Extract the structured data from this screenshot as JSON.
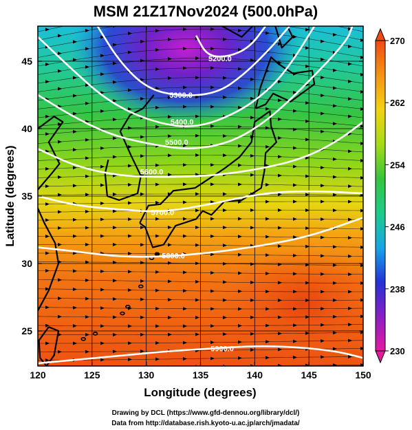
{
  "chart_data": {
    "type": "heatmap",
    "title": "MSM 21Z17Nov2024 (500.0hPa)",
    "xlabel": "Longitude (degrees)",
    "ylabel": "Latitude  (degrees)",
    "xlim": [
      120,
      150
    ],
    "ylim": [
      22.4,
      47.6
    ],
    "x_ticks": [
      120,
      125,
      130,
      135,
      140,
      145,
      150
    ],
    "y_ticks": [
      25,
      30,
      35,
      40,
      45
    ],
    "colorbar": {
      "range": [
        230,
        270
      ],
      "ticks": [
        230,
        238,
        246,
        254,
        262,
        270
      ],
      "colors": [
        "#e6199f",
        "#8a1fc4",
        "#2233d8",
        "#16a6e6",
        "#1ccc8a",
        "#37c43c",
        "#a6dc14",
        "#f2d312",
        "#f59412",
        "#ef4a12"
      ],
      "extend": "both"
    },
    "contours": [
      {
        "label": "5200.0",
        "label_pos": [
          136.8,
          45.2
        ],
        "points": [
          [
            134.6,
            46.9
          ],
          [
            135.6,
            45.4
          ],
          [
            137.5,
            45.3
          ],
          [
            139.5,
            46.0
          ],
          [
            141.0,
            47.6
          ]
        ]
      },
      {
        "label": "5300.0",
        "label_pos": [
          133.2,
          42.5
        ],
        "points": [
          [
            125.5,
            47.6
          ],
          [
            127.5,
            45.0
          ],
          [
            130.0,
            43.0
          ],
          [
            133.0,
            42.4
          ],
          [
            136.5,
            42.6
          ],
          [
            139.0,
            44.0
          ],
          [
            141.5,
            46.0
          ],
          [
            143.2,
            47.6
          ]
        ]
      },
      {
        "label": "5400.0",
        "label_pos": [
          133.3,
          40.5
        ],
        "points": [
          [
            120.0,
            46.8
          ],
          [
            123.0,
            44.5
          ],
          [
            126.5,
            42.0
          ],
          [
            130.5,
            40.5
          ],
          [
            134.5,
            40.0
          ],
          [
            138.5,
            41.2
          ],
          [
            141.5,
            43.0
          ],
          [
            143.5,
            45.0
          ],
          [
            145.5,
            47.6
          ]
        ]
      },
      {
        "label": "5500.0",
        "label_pos": [
          132.8,
          39.0
        ],
        "points": [
          [
            120.0,
            42.5
          ],
          [
            123.0,
            41.0
          ],
          [
            126.5,
            39.6
          ],
          [
            130.0,
            38.9
          ],
          [
            134.0,
            38.4
          ],
          [
            138.0,
            39.0
          ],
          [
            141.5,
            40.8
          ],
          [
            145.0,
            43.5
          ],
          [
            148.5,
            46.5
          ],
          [
            149.0,
            47.6
          ]
        ]
      },
      {
        "label": "5600.0",
        "label_pos": [
          130.5,
          36.8
        ],
        "points": [
          [
            120.0,
            38.5
          ],
          [
            123.5,
            37.2
          ],
          [
            127.5,
            36.5
          ],
          [
            131.5,
            36.4
          ],
          [
            136.0,
            36.5
          ],
          [
            140.5,
            37.0
          ],
          [
            144.5,
            37.8
          ],
          [
            147.5,
            39.0
          ],
          [
            150.0,
            40.5
          ]
        ]
      },
      {
        "label": "5700.0",
        "label_pos": [
          131.5,
          33.8
        ],
        "points": [
          [
            120.0,
            35.0
          ],
          [
            123.5,
            34.3
          ],
          [
            127.5,
            34.0
          ],
          [
            131.5,
            33.8
          ],
          [
            136.0,
            34.4
          ],
          [
            140.5,
            35.2
          ],
          [
            145.0,
            35.4
          ],
          [
            150.0,
            35.2
          ]
        ]
      },
      {
        "label": "5800.0",
        "label_pos": [
          132.5,
          30.6
        ],
        "points": [
          [
            120.0,
            31.2
          ],
          [
            123.5,
            30.9
          ],
          [
            127.5,
            30.5
          ],
          [
            131.5,
            30.5
          ],
          [
            136.0,
            30.8
          ],
          [
            140.5,
            31.3
          ],
          [
            145.0,
            32.0
          ],
          [
            150.0,
            33.4
          ]
        ]
      },
      {
        "label": "5900.0",
        "label_pos": [
          137.0,
          23.7
        ],
        "points": [
          [
            120.0,
            22.6
          ],
          [
            124.0,
            22.9
          ],
          [
            128.0,
            23.2
          ],
          [
            132.0,
            23.5
          ],
          [
            136.0,
            23.7
          ],
          [
            140.0,
            23.9
          ],
          [
            144.0,
            23.8
          ],
          [
            147.5,
            23.5
          ],
          [
            150.0,
            23.0
          ]
        ]
      }
    ]
  },
  "credits": {
    "line1": "Drawing by DCL (https://www.gfd-dennou.org/library/dcl/)",
    "line2": "Data from http://database.rish.kyoto-u.ac.jp/arch/jmadata/"
  }
}
